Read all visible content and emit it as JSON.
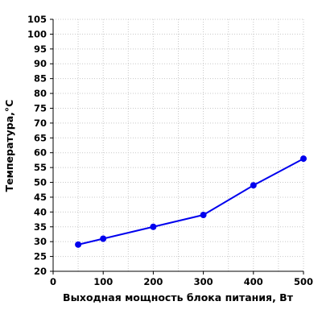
{
  "chart_data": {
    "type": "line",
    "title": "",
    "xlabel": "Выходная мощность блока питания, Вт",
    "ylabel": "Температура,°С",
    "xlim": [
      0,
      500
    ],
    "ylim": [
      20,
      105
    ],
    "xticks": [
      0,
      100,
      200,
      300,
      400,
      500
    ],
    "yticks": [
      20,
      25,
      30,
      35,
      40,
      45,
      50,
      55,
      60,
      65,
      70,
      75,
      80,
      85,
      90,
      95,
      100,
      105
    ],
    "grid": true,
    "legend": "none",
    "series": [
      {
        "color": "#0000ee",
        "x": [
          50,
          100,
          200,
          300,
          400,
          500
        ],
        "y": [
          29,
          31,
          35,
          39,
          49,
          58
        ]
      }
    ]
  }
}
